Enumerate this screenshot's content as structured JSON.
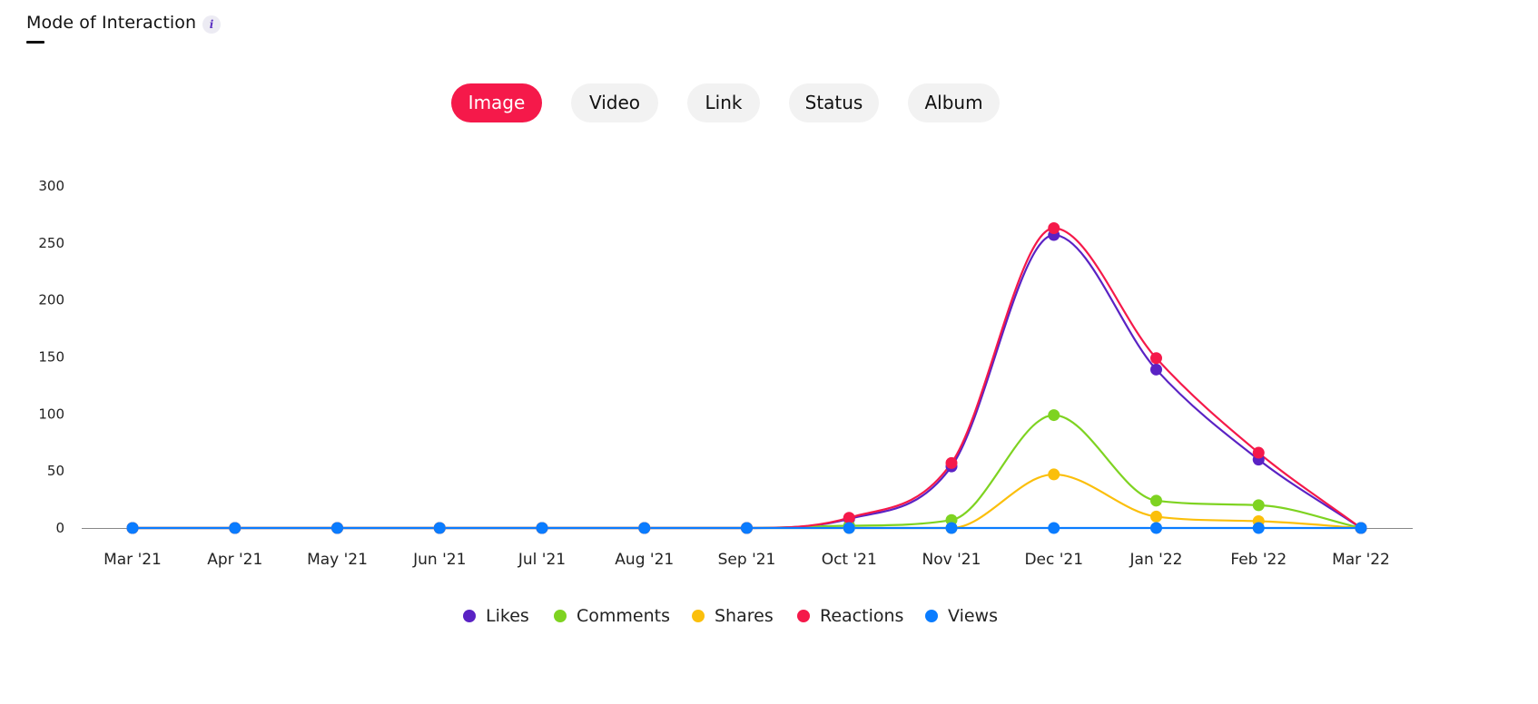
{
  "header": {
    "title": "Mode of Interaction",
    "info_icon": "i"
  },
  "tabs": [
    {
      "label": "Image",
      "active": true
    },
    {
      "label": "Video",
      "active": false
    },
    {
      "label": "Link",
      "active": false
    },
    {
      "label": "Status",
      "active": false
    },
    {
      "label": "Album",
      "active": false
    }
  ],
  "colors": {
    "accent": "#f5194a",
    "tab_bg": "#f2f2f2",
    "axis": "#888888",
    "Likes": "#5a22c4",
    "Comments": "#7ed321",
    "Shares": "#fbbf0b",
    "Reactions": "#f5194a",
    "Views": "#0a7cff"
  },
  "chart_data": {
    "type": "line",
    "smooth": true,
    "categories": [
      "Mar '21",
      "Apr '21",
      "May '21",
      "Jun '21",
      "Jul '21",
      "Aug '21",
      "Sep '21",
      "Oct '21",
      "Nov '21",
      "Dec '21",
      "Jan '22",
      "Feb '22",
      "Mar '22"
    ],
    "ylim": [
      0,
      300
    ],
    "yticks": [
      0,
      50,
      100,
      150,
      200,
      250,
      300
    ],
    "grid": false,
    "legend_position": "bottom-center",
    "series": [
      {
        "name": "Likes",
        "values": [
          0,
          0,
          0,
          0,
          0,
          0,
          0,
          8,
          54,
          257,
          139,
          60,
          0
        ]
      },
      {
        "name": "Comments",
        "values": [
          0,
          0,
          0,
          0,
          0,
          0,
          0,
          2,
          7,
          99,
          24,
          20,
          0
        ]
      },
      {
        "name": "Shares",
        "values": [
          0,
          0,
          0,
          0,
          0,
          0,
          0,
          0,
          0,
          47,
          10,
          6,
          0
        ]
      },
      {
        "name": "Reactions",
        "values": [
          0,
          0,
          0,
          0,
          0,
          0,
          0,
          9,
          57,
          263,
          149,
          66,
          0
        ]
      },
      {
        "name": "Views",
        "values": [
          0,
          0,
          0,
          0,
          0,
          0,
          0,
          0,
          0,
          0,
          0,
          0,
          0
        ]
      }
    ]
  }
}
